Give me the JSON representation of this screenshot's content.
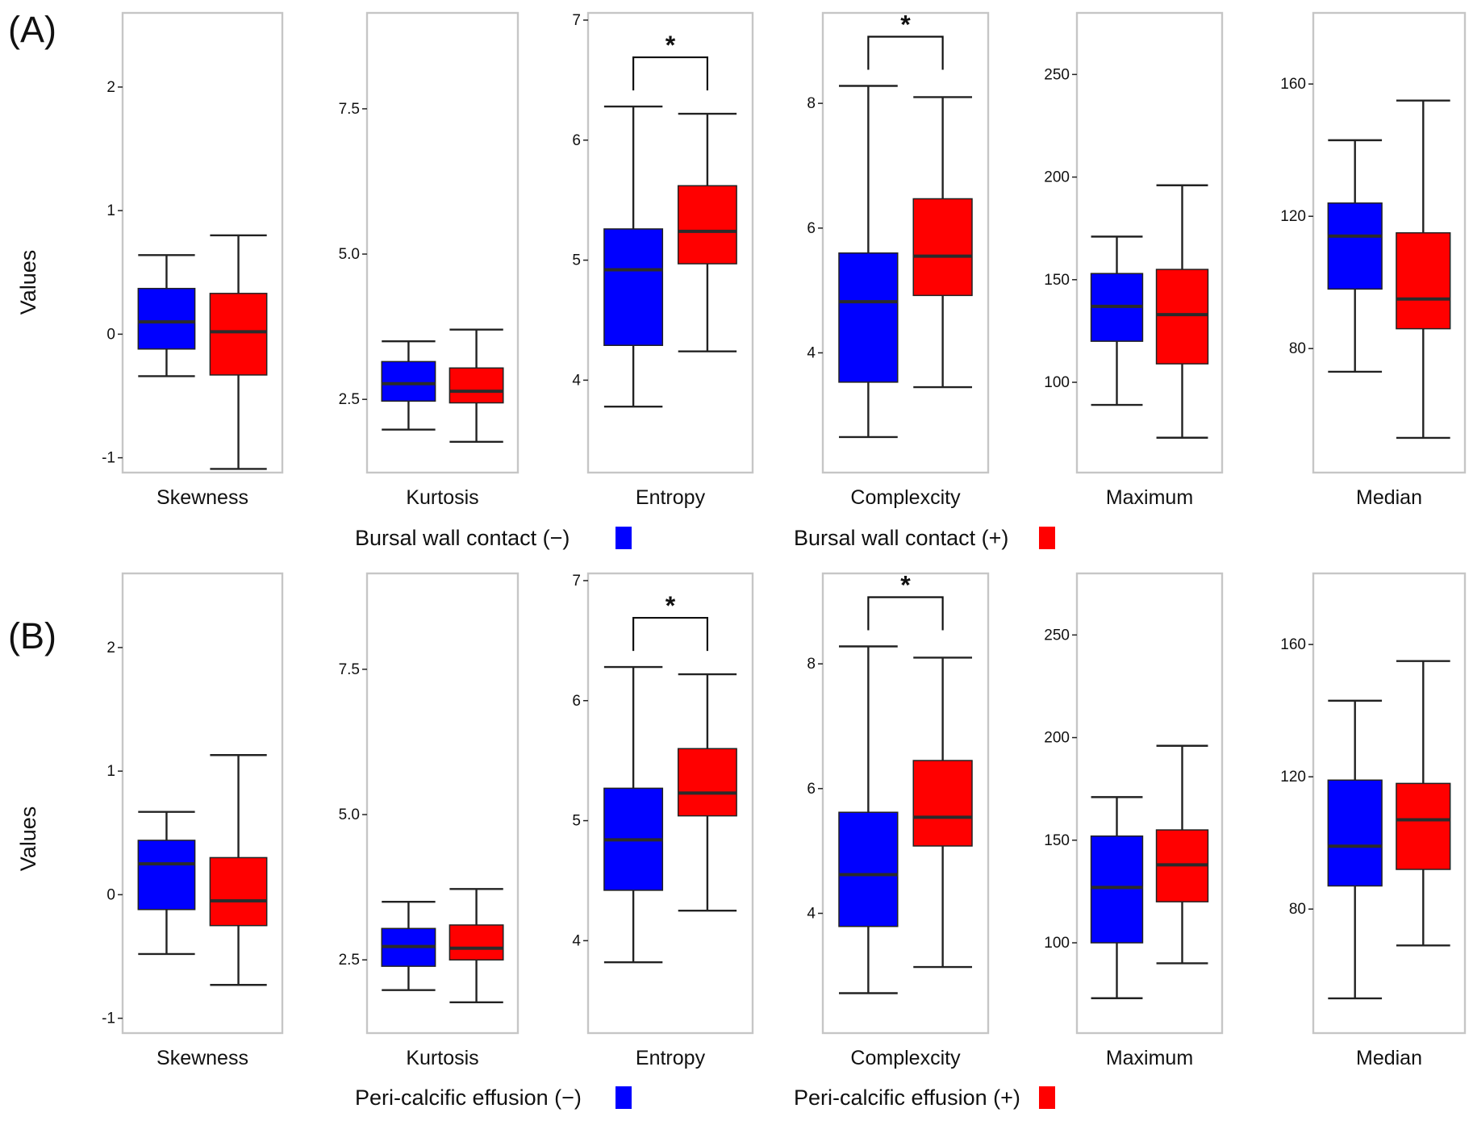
{
  "colors": {
    "negative": "#0000ff",
    "positive": "#ff0000"
  },
  "y_axis_label": "Values",
  "significance_symbol": "*",
  "chart_data": [
    {
      "type": "box",
      "panel_label": "(A)",
      "legend": {
        "negative": "Bursal wall contact (−)",
        "positive": "Bursal wall contact (+)"
      },
      "subplots": [
        {
          "category": "Skewness",
          "ylim": [
            -1.12,
            2.6
          ],
          "ticks": [
            -1,
            0,
            1,
            2
          ],
          "tick_labels": [
            "-1",
            "0",
            "1",
            "2"
          ],
          "significant": false,
          "groups": [
            {
              "group": "negative",
              "whisker_low": -0.34,
              "q1": -0.12,
              "median": 0.1,
              "q3": 0.37,
              "whisker_high": 0.64
            },
            {
              "group": "positive",
              "whisker_low": -1.09,
              "q1": -0.33,
              "median": 0.02,
              "q3": 0.33,
              "whisker_high": 0.8
            }
          ]
        },
        {
          "category": "Kurtosis",
          "ylim": [
            1.24,
            9.15
          ],
          "ticks": [
            2.5,
            5.0,
            7.5
          ],
          "tick_labels": [
            "2.5",
            "5.0",
            "7.5"
          ],
          "significant": false,
          "groups": [
            {
              "group": "negative",
              "whisker_low": 1.98,
              "q1": 2.47,
              "median": 2.77,
              "q3": 3.15,
              "whisker_high": 3.5
            },
            {
              "group": "positive",
              "whisker_low": 1.77,
              "q1": 2.44,
              "median": 2.64,
              "q3": 3.04,
              "whisker_high": 3.7
            }
          ]
        },
        {
          "category": "Entropy",
          "ylim": [
            3.23,
            7.06
          ],
          "ticks": [
            4,
            5,
            6,
            7
          ],
          "tick_labels": [
            "4",
            "5",
            "6",
            "7"
          ],
          "significant": true,
          "groups": [
            {
              "group": "negative",
              "whisker_low": 3.78,
              "q1": 4.29,
              "median": 4.92,
              "q3": 5.26,
              "whisker_high": 6.28
            },
            {
              "group": "positive",
              "whisker_low": 4.24,
              "q1": 4.97,
              "median": 5.24,
              "q3": 5.62,
              "whisker_high": 6.22
            }
          ]
        },
        {
          "category": "Complexcity",
          "ylim": [
            2.08,
            9.45
          ],
          "ticks": [
            4,
            6,
            8
          ],
          "tick_labels": [
            "4",
            "6",
            "8"
          ],
          "significant": true,
          "groups": [
            {
              "group": "negative",
              "whisker_low": 2.65,
              "q1": 3.53,
              "median": 4.82,
              "q3": 5.6,
              "whisker_high": 8.28
            },
            {
              "group": "positive",
              "whisker_low": 3.45,
              "q1": 4.92,
              "median": 5.55,
              "q3": 6.47,
              "whisker_high": 8.1
            }
          ]
        },
        {
          "category": "Maximum",
          "ylim": [
            56,
            280
          ],
          "ticks": [
            100,
            150,
            200,
            250
          ],
          "tick_labels": [
            "100",
            "150",
            "200",
            "250"
          ],
          "significant": false,
          "groups": [
            {
              "group": "negative",
              "whisker_low": 89,
              "q1": 120,
              "median": 137,
              "q3": 153,
              "whisker_high": 171
            },
            {
              "group": "positive",
              "whisker_low": 73,
              "q1": 109,
              "median": 133,
              "q3": 155,
              "whisker_high": 196
            }
          ]
        },
        {
          "category": "Median",
          "ylim": [
            42.5,
            181.5
          ],
          "ticks": [
            80,
            120,
            160
          ],
          "tick_labels": [
            "80",
            "120",
            "160"
          ],
          "significant": false,
          "groups": [
            {
              "group": "negative",
              "whisker_low": 73,
              "q1": 98,
              "median": 114,
              "q3": 124,
              "whisker_high": 143
            },
            {
              "group": "positive",
              "whisker_low": 53,
              "q1": 86,
              "median": 95,
              "q3": 115,
              "whisker_high": 155
            }
          ]
        }
      ]
    },
    {
      "type": "box",
      "panel_label": "(B)",
      "legend": {
        "negative": "Peri-calcific effusion (−)",
        "positive": "Peri-calcific effusion (+)"
      },
      "subplots": [
        {
          "category": "Skewness",
          "ylim": [
            -1.12,
            2.6
          ],
          "ticks": [
            -1,
            0,
            1,
            2
          ],
          "tick_labels": [
            "-1",
            "0",
            "1",
            "2"
          ],
          "significant": false,
          "groups": [
            {
              "group": "negative",
              "whisker_low": -0.48,
              "q1": -0.12,
              "median": 0.25,
              "q3": 0.44,
              "whisker_high": 0.67
            },
            {
              "group": "positive",
              "whisker_low": -0.73,
              "q1": -0.25,
              "median": -0.05,
              "q3": 0.3,
              "whisker_high": 1.13
            }
          ]
        },
        {
          "category": "Kurtosis",
          "ylim": [
            1.24,
            9.15
          ],
          "ticks": [
            2.5,
            5.0,
            7.5
          ],
          "tick_labels": [
            "2.5",
            "5.0",
            "7.5"
          ],
          "significant": false,
          "groups": [
            {
              "group": "negative",
              "whisker_low": 1.98,
              "q1": 2.39,
              "median": 2.73,
              "q3": 3.04,
              "whisker_high": 3.5
            },
            {
              "group": "positive",
              "whisker_low": 1.77,
              "q1": 2.5,
              "median": 2.7,
              "q3": 3.1,
              "whisker_high": 3.72
            }
          ]
        },
        {
          "category": "Entropy",
          "ylim": [
            3.23,
            7.06
          ],
          "ticks": [
            4,
            5,
            6,
            7
          ],
          "tick_labels": [
            "4",
            "5",
            "6",
            "7"
          ],
          "significant": true,
          "groups": [
            {
              "group": "negative",
              "whisker_low": 3.82,
              "q1": 4.42,
              "median": 4.84,
              "q3": 5.27,
              "whisker_high": 6.28
            },
            {
              "group": "positive",
              "whisker_low": 4.25,
              "q1": 5.04,
              "median": 5.23,
              "q3": 5.6,
              "whisker_high": 6.22
            }
          ]
        },
        {
          "category": "Complexcity",
          "ylim": [
            2.08,
            9.45
          ],
          "ticks": [
            4,
            6,
            8
          ],
          "tick_labels": [
            "4",
            "6",
            "8"
          ],
          "significant": true,
          "groups": [
            {
              "group": "negative",
              "whisker_low": 2.72,
              "q1": 3.79,
              "median": 4.62,
              "q3": 5.62,
              "whisker_high": 8.28
            },
            {
              "group": "positive",
              "whisker_low": 3.14,
              "q1": 5.08,
              "median": 5.54,
              "q3": 6.45,
              "whisker_high": 8.1
            }
          ]
        },
        {
          "category": "Maximum",
          "ylim": [
            56,
            280
          ],
          "ticks": [
            100,
            150,
            200,
            250
          ],
          "tick_labels": [
            "100",
            "150",
            "200",
            "250"
          ],
          "significant": false,
          "groups": [
            {
              "group": "negative",
              "whisker_low": 73,
              "q1": 100,
              "median": 127,
              "q3": 152,
              "whisker_high": 171
            },
            {
              "group": "positive",
              "whisker_low": 90,
              "q1": 120,
              "median": 138,
              "q3": 155,
              "whisker_high": 196
            }
          ]
        },
        {
          "category": "Median",
          "ylim": [
            42.5,
            181.5
          ],
          "ticks": [
            80,
            120,
            160
          ],
          "tick_labels": [
            "80",
            "120",
            "160"
          ],
          "significant": false,
          "groups": [
            {
              "group": "negative",
              "whisker_low": 53,
              "q1": 87,
              "median": 99,
              "q3": 119,
              "whisker_high": 143
            },
            {
              "group": "positive",
              "whisker_low": 69,
              "q1": 92,
              "median": 107,
              "q3": 118,
              "whisker_high": 155
            }
          ]
        }
      ]
    }
  ]
}
